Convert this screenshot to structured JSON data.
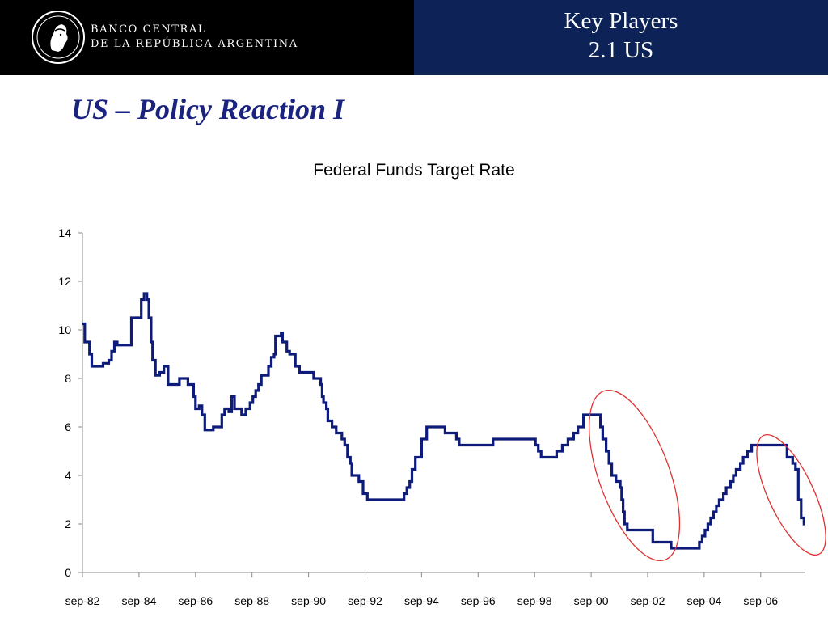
{
  "header": {
    "bank_line1": "BANCO CENTRAL",
    "bank_line2": "DE LA REPÚBLICA ARGENTINA",
    "section_line1": "Key Players",
    "section_line2": "2.1 US",
    "left_bg": "#000000",
    "right_bg": "#0d2357"
  },
  "slide": {
    "title": "US – Policy Reaction I",
    "title_color": "#1a237e"
  },
  "chart_data": {
    "type": "line",
    "title": "Federal Funds Target Rate",
    "xlabel": "",
    "ylabel": "",
    "ylim": [
      0,
      14
    ],
    "yticks": [
      0,
      2,
      4,
      6,
      8,
      10,
      12,
      14
    ],
    "xlim": [
      1982.67,
      2008.25
    ],
    "xtick_labels": [
      "sep-82",
      "sep-84",
      "sep-86",
      "sep-88",
      "sep-90",
      "sep-92",
      "sep-94",
      "sep-96",
      "sep-98",
      "sep-00",
      "sep-02",
      "sep-04",
      "sep-06"
    ],
    "xtick_years": [
      1982.67,
      1984.67,
      1986.67,
      1988.67,
      1990.67,
      1992.67,
      1994.67,
      1996.67,
      1998.67,
      2000.67,
      2002.67,
      2004.67,
      2006.67
    ],
    "line_color": "#0d1b7a",
    "grid": false,
    "legend": "none",
    "step_series": [
      [
        1982.67,
        10.25
      ],
      [
        1982.75,
        9.5
      ],
      [
        1982.92,
        9.0
      ],
      [
        1983.0,
        8.5
      ],
      [
        1983.4,
        8.625
      ],
      [
        1983.6,
        8.75
      ],
      [
        1983.7,
        9.125
      ],
      [
        1983.8,
        9.5
      ],
      [
        1983.9,
        9.375
      ],
      [
        1984.1,
        9.375
      ],
      [
        1984.4,
        10.5
      ],
      [
        1984.75,
        11.25
      ],
      [
        1984.85,
        11.5
      ],
      [
        1984.95,
        11.25
      ],
      [
        1985.02,
        10.5
      ],
      [
        1985.1,
        9.5
      ],
      [
        1985.15,
        8.75
      ],
      [
        1985.25,
        8.125
      ],
      [
        1985.4,
        8.25
      ],
      [
        1985.55,
        8.5
      ],
      [
        1985.7,
        7.75
      ],
      [
        1985.85,
        7.75
      ],
      [
        1986.0,
        7.75
      ],
      [
        1986.1,
        8.0
      ],
      [
        1986.4,
        7.75
      ],
      [
        1986.6,
        7.25
      ],
      [
        1986.67,
        6.75
      ],
      [
        1986.8,
        6.875
      ],
      [
        1986.9,
        6.5
      ],
      [
        1987.0,
        5.875
      ],
      [
        1987.3,
        6.0
      ],
      [
        1987.6,
        6.5
      ],
      [
        1987.7,
        6.75
      ],
      [
        1987.85,
        6.625
      ],
      [
        1987.95,
        7.25
      ],
      [
        1988.0,
        7.25
      ],
      [
        1988.05,
        6.75
      ],
      [
        1988.3,
        6.5
      ],
      [
        1988.45,
        6.75
      ],
      [
        1988.6,
        7.0
      ],
      [
        1988.7,
        7.25
      ],
      [
        1988.8,
        7.5
      ],
      [
        1988.9,
        7.75
      ],
      [
        1989.0,
        8.125
      ],
      [
        1989.25,
        8.5
      ],
      [
        1989.35,
        8.875
      ],
      [
        1989.45,
        9.0
      ],
      [
        1989.5,
        9.75
      ],
      [
        1989.7,
        9.875
      ],
      [
        1989.75,
        9.5
      ],
      [
        1989.9,
        9.125
      ],
      [
        1990.0,
        9.0
      ],
      [
        1990.2,
        8.5
      ],
      [
        1990.35,
        8.25
      ],
      [
        1990.85,
        8.0
      ],
      [
        1991.1,
        7.75
      ],
      [
        1991.15,
        7.25
      ],
      [
        1991.2,
        7.0
      ],
      [
        1991.3,
        6.75
      ],
      [
        1991.35,
        6.25
      ],
      [
        1991.5,
        6.0
      ],
      [
        1991.65,
        5.75
      ],
      [
        1991.85,
        5.5
      ],
      [
        1991.95,
        5.25
      ],
      [
        1992.05,
        4.75
      ],
      [
        1992.15,
        4.5
      ],
      [
        1992.2,
        4.0
      ],
      [
        1992.45,
        3.75
      ],
      [
        1992.6,
        3.25
      ],
      [
        1992.75,
        3.0
      ],
      [
        1994.05,
        3.25
      ],
      [
        1994.15,
        3.5
      ],
      [
        1994.25,
        3.75
      ],
      [
        1994.33,
        4.25
      ],
      [
        1994.45,
        4.75
      ],
      [
        1994.67,
        5.5
      ],
      [
        1994.85,
        6.0
      ],
      [
        1995.5,
        5.75
      ],
      [
        1995.9,
        5.5
      ],
      [
        1996.0,
        5.25
      ],
      [
        1997.2,
        5.5
      ],
      [
        1998.7,
        5.25
      ],
      [
        1998.8,
        5.0
      ],
      [
        1998.9,
        4.75
      ],
      [
        1999.45,
        5.0
      ],
      [
        1999.65,
        5.25
      ],
      [
        1999.85,
        5.5
      ],
      [
        2000.05,
        5.75
      ],
      [
        2000.2,
        6.0
      ],
      [
        2000.4,
        6.5
      ],
      [
        2001.0,
        6.0
      ],
      [
        2001.08,
        5.5
      ],
      [
        2001.2,
        5.0
      ],
      [
        2001.3,
        4.5
      ],
      [
        2001.4,
        4.0
      ],
      [
        2001.55,
        3.75
      ],
      [
        2001.7,
        3.5
      ],
      [
        2001.75,
        3.0
      ],
      [
        2001.8,
        2.5
      ],
      [
        2001.85,
        2.0
      ],
      [
        2001.95,
        1.75
      ],
      [
        2002.85,
        1.25
      ],
      [
        2003.5,
        1.0
      ],
      [
        2004.5,
        1.25
      ],
      [
        2004.6,
        1.5
      ],
      [
        2004.7,
        1.75
      ],
      [
        2004.8,
        2.0
      ],
      [
        2004.9,
        2.25
      ],
      [
        2005.0,
        2.5
      ],
      [
        2005.1,
        2.75
      ],
      [
        2005.2,
        3.0
      ],
      [
        2005.35,
        3.25
      ],
      [
        2005.45,
        3.5
      ],
      [
        2005.6,
        3.75
      ],
      [
        2005.7,
        4.0
      ],
      [
        2005.8,
        4.25
      ],
      [
        2005.95,
        4.5
      ],
      [
        2006.05,
        4.75
      ],
      [
        2006.2,
        5.0
      ],
      [
        2006.35,
        5.25
      ],
      [
        2007.6,
        4.75
      ],
      [
        2007.8,
        4.5
      ],
      [
        2007.9,
        4.25
      ],
      [
        2008.0,
        3.0
      ],
      [
        2008.1,
        2.25
      ],
      [
        2008.2,
        2.0
      ],
      [
        2008.25,
        2.0
      ]
    ],
    "annotations": [
      {
        "shape": "ellipse",
        "color": "#e03030",
        "center": [
          2002.2,
          4.0
        ],
        "rx_years": 1.25,
        "ry_rate": 3.7,
        "rotate": -20
      },
      {
        "shape": "ellipse",
        "color": "#e03030",
        "center": [
          2007.75,
          3.2
        ],
        "rx_years": 0.8,
        "ry_rate": 2.7,
        "rotate": -25
      }
    ]
  }
}
